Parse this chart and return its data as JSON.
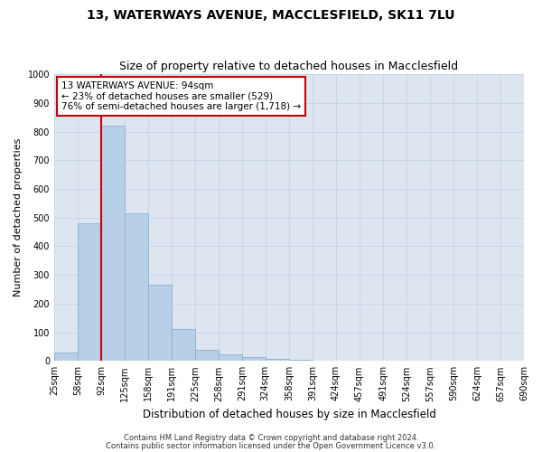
{
  "title1": "13, WATERWAYS AVENUE, MACCLESFIELD, SK11 7LU",
  "title2": "Size of property relative to detached houses in Macclesfield",
  "xlabel": "Distribution of detached houses by size in Macclesfield",
  "ylabel": "Number of detached properties",
  "footer1": "Contains HM Land Registry data © Crown copyright and database right 2024.",
  "footer2": "Contains public sector information licensed under the Open Government Licence v3.0.",
  "annotation_line1": "13 WATERWAYS AVENUE: 94sqm",
  "annotation_line2": "← 23% of detached houses are smaller (529)",
  "annotation_line3": "76% of semi-detached houses are larger (1,718) →",
  "bin_edges": [
    25,
    58,
    92,
    125,
    158,
    191,
    225,
    258,
    291,
    324,
    358,
    391,
    424,
    457,
    491,
    524,
    557,
    590,
    624,
    657,
    690
  ],
  "bar_heights": [
    30,
    480,
    820,
    515,
    265,
    110,
    40,
    22,
    12,
    8,
    3,
    1,
    1,
    0,
    0,
    0,
    0,
    0,
    0,
    0
  ],
  "bar_color": "#b8cfe8",
  "bar_edge_color": "#8aafd4",
  "vline_x": 92,
  "vline_color": "#cc0000",
  "ylim": [
    0,
    1000
  ],
  "yticks": [
    0,
    100,
    200,
    300,
    400,
    500,
    600,
    700,
    800,
    900,
    1000
  ],
  "xtick_labels": [
    "25sqm",
    "58sqm",
    "92sqm",
    "125sqm",
    "158sqm",
    "191sqm",
    "225sqm",
    "258sqm",
    "291sqm",
    "324sqm",
    "358sqm",
    "391sqm",
    "424sqm",
    "457sqm",
    "491sqm",
    "524sqm",
    "557sqm",
    "590sqm",
    "624sqm",
    "657sqm",
    "690sqm"
  ],
  "grid_color": "#c8d4e8",
  "bg_color": "#dde6f0",
  "annotation_box_color": "#cc0000",
  "title_fontsize": 10,
  "subtitle_fontsize": 9,
  "ylabel_fontsize": 8,
  "xlabel_fontsize": 8.5,
  "tick_fontsize": 7,
  "footer_fontsize": 6,
  "annot_fontsize": 7.5
}
